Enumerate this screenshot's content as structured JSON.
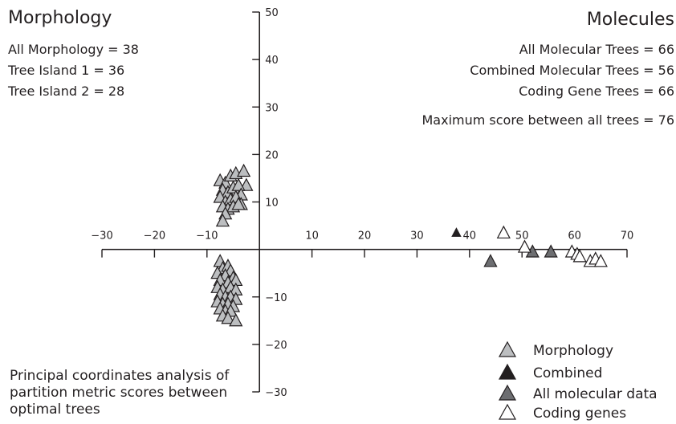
{
  "left_block": {
    "heading": "Morphology",
    "lines": [
      "All Morphology = 38",
      "Tree Island 1 = 36",
      "Tree Island 2 = 28"
    ]
  },
  "right_block": {
    "heading": "Molecules",
    "lines": [
      "All Molecular Trees = 66",
      "Combined Molecular Trees = 56",
      "Coding Gene Trees = 66"
    ],
    "max_score": "Maximum score between all trees = 76"
  },
  "caption": "Principal coordinates analysis of partition metric scores between optimal trees",
  "legend": [
    {
      "label": "Morphology",
      "series": "morphology"
    },
    {
      "label": "Combined",
      "series": "combined"
    },
    {
      "label": "All molecular data",
      "series": "molecular"
    },
    {
      "label": "Coding genes",
      "series": "coding"
    }
  ],
  "colors": {
    "morphology": "#bcbec0",
    "combined": "#231f20",
    "molecular": "#6d6e71",
    "coding": "#ffffff",
    "stroke": "#231f20"
  },
  "chart_data": {
    "type": "scatter",
    "xlim": [
      -30,
      70
    ],
    "ylim": [
      -30,
      50
    ],
    "x_ticks": [
      -30,
      -20,
      -10,
      10,
      20,
      30,
      40,
      50,
      60,
      70
    ],
    "x_tick_labels": [
      "−30",
      "−20",
      "−10",
      "10",
      "20",
      "30",
      "40",
      "50",
      "60",
      "70"
    ],
    "y_ticks": [
      -30,
      -20,
      -10,
      10,
      20,
      30,
      40,
      50
    ],
    "y_tick_labels": [
      "−30",
      "−20",
      "−10",
      "10",
      "20",
      "30",
      "40",
      "50"
    ],
    "grid": false,
    "legend_position": "bottom-right",
    "series": [
      {
        "name": "Morphology",
        "key": "morphology",
        "points": [
          [
            -7.5,
            14.5
          ],
          [
            -6.5,
            14
          ],
          [
            -5.5,
            15.5
          ],
          [
            -4.5,
            16
          ],
          [
            -3,
            16.5
          ],
          [
            -2.5,
            13.5
          ],
          [
            -7,
            12.5
          ],
          [
            -6,
            12
          ],
          [
            -5,
            13
          ],
          [
            -4,
            13.5
          ],
          [
            -3.5,
            11.5
          ],
          [
            -7.5,
            11
          ],
          [
            -6.5,
            10
          ],
          [
            -5.5,
            10.5
          ],
          [
            -4.5,
            11
          ],
          [
            -3.5,
            9.5
          ],
          [
            -7,
            9
          ],
          [
            -6,
            8.5
          ],
          [
            -5,
            9
          ],
          [
            -4,
            9.5
          ],
          [
            -6.5,
            7.5
          ],
          [
            -7,
            6
          ],
          [
            -7.5,
            -2.5
          ],
          [
            -7,
            -4
          ],
          [
            -6,
            -3.5
          ],
          [
            -5.5,
            -4.5
          ],
          [
            -8,
            -5
          ],
          [
            -6.5,
            -5.5
          ],
          [
            -5,
            -6
          ],
          [
            -4.5,
            -6.5
          ],
          [
            -7.5,
            -6.5
          ],
          [
            -6,
            -7
          ],
          [
            -8,
            -8
          ],
          [
            -7,
            -8.5
          ],
          [
            -5.5,
            -8
          ],
          [
            -4.5,
            -8.5
          ],
          [
            -7.5,
            -9.5
          ],
          [
            -6.5,
            -10
          ],
          [
            -5.5,
            -10
          ],
          [
            -4.5,
            -10.5
          ],
          [
            -8,
            -11
          ],
          [
            -7,
            -11.5
          ],
          [
            -6,
            -11.5
          ],
          [
            -5,
            -12
          ],
          [
            -7.5,
            -12.5
          ],
          [
            -6.5,
            -13
          ],
          [
            -5.5,
            -13
          ],
          [
            -7,
            -14
          ],
          [
            -6,
            -14.5
          ],
          [
            -4.5,
            -15
          ]
        ]
      },
      {
        "name": "Combined",
        "key": "combined",
        "points": [
          [
            37.5,
            3.5
          ]
        ]
      },
      {
        "name": "All molecular data",
        "key": "molecular",
        "points": [
          [
            44,
            -2.5
          ],
          [
            52,
            -0.5
          ],
          [
            55.5,
            -0.5
          ]
        ]
      },
      {
        "name": "Coding genes",
        "key": "coding",
        "points": [
          [
            46.5,
            3.5
          ],
          [
            50.5,
            0.5
          ],
          [
            59.5,
            -0.5
          ],
          [
            60.5,
            -1
          ],
          [
            61,
            -1.5
          ],
          [
            63,
            -2.5
          ],
          [
            64,
            -2
          ],
          [
            65,
            -2.5
          ]
        ]
      }
    ]
  }
}
